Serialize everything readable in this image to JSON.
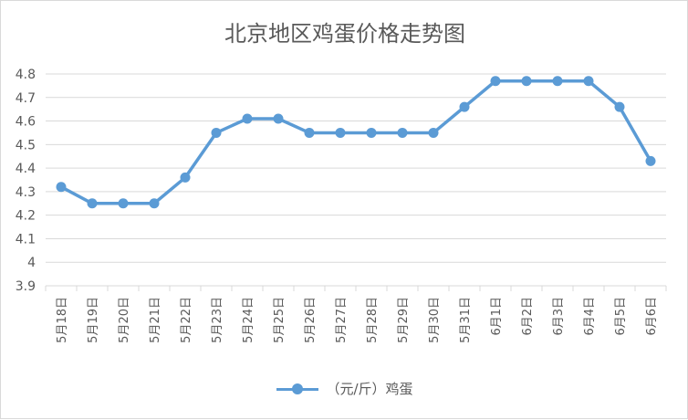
{
  "chart_data": {
    "type": "line",
    "title": "北京地区鸡蛋价格走势图",
    "categories": [
      "5月18日",
      "5月19日",
      "5月20日",
      "5月21日",
      "5月22日",
      "5月23日",
      "5月24日",
      "5月25日",
      "5月26日",
      "5月27日",
      "5月28日",
      "5月29日",
      "5月30日",
      "5月31日",
      "6月1日",
      "6月2日",
      "6月3日",
      "6月4日",
      "6月5日",
      "6月6日"
    ],
    "series": [
      {
        "name": "（元/斤）鸡蛋",
        "values": [
          4.32,
          4.25,
          4.25,
          4.25,
          4.36,
          4.55,
          4.61,
          4.61,
          4.55,
          4.55,
          4.55,
          4.55,
          4.55,
          4.66,
          4.77,
          4.77,
          4.77,
          4.77,
          4.66,
          4.43
        ]
      }
    ],
    "ylim": [
      3.9,
      4.8
    ],
    "yticks": [
      "3.9",
      "4",
      "4.1",
      "4.2",
      "4.3",
      "4.4",
      "4.5",
      "4.6",
      "4.7",
      "4.8"
    ],
    "grid": true,
    "legend_position": "bottom",
    "colors": {
      "series": "#5b9bd5",
      "grid": "#d9d9d9",
      "text": "#595959"
    }
  }
}
